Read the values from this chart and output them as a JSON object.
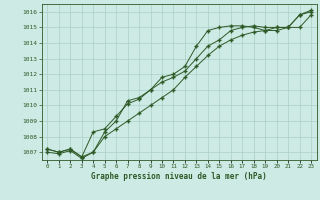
{
  "title": "Graphe pression niveau de la mer (hPa)",
  "background_color": "#ceeae4",
  "grid_color": "#aacfc8",
  "line_color": "#2d5a27",
  "x_labels": [
    "0",
    "1",
    "2",
    "3",
    "4",
    "5",
    "6",
    "7",
    "8",
    "9",
    "10",
    "11",
    "12",
    "13",
    "14",
    "15",
    "16",
    "17",
    "18",
    "19",
    "20",
    "21",
    "22",
    "23"
  ],
  "y_min": 1006.5,
  "y_max": 1016.5,
  "y_ticks": [
    1007,
    1008,
    1009,
    1010,
    1011,
    1012,
    1013,
    1014,
    1015,
    1016
  ],
  "series1": [
    1007.2,
    1007.0,
    1007.2,
    1006.7,
    1007.0,
    1008.3,
    1009.0,
    1010.3,
    1010.5,
    1011.0,
    1011.5,
    1011.8,
    1012.2,
    1013.0,
    1013.8,
    1014.2,
    1014.8,
    1015.0,
    1015.1,
    1015.0,
    1015.0,
    1015.0,
    1015.0,
    1015.8
  ],
  "series2": [
    1007.2,
    1007.0,
    1007.2,
    1006.7,
    1008.3,
    1008.5,
    1009.3,
    1010.1,
    1010.4,
    1011.0,
    1011.8,
    1012.0,
    1012.5,
    1013.8,
    1014.8,
    1015.0,
    1015.1,
    1015.1,
    1015.0,
    1014.8,
    1014.8,
    1015.0,
    1015.8,
    1016.0
  ],
  "series3": [
    1007.0,
    1006.9,
    1007.1,
    1006.6,
    1007.0,
    1008.0,
    1008.5,
    1009.0,
    1009.5,
    1010.0,
    1010.5,
    1011.0,
    1011.8,
    1012.5,
    1013.2,
    1013.8,
    1014.2,
    1014.5,
    1014.7,
    1014.8,
    1015.0,
    1015.0,
    1015.8,
    1016.1
  ]
}
